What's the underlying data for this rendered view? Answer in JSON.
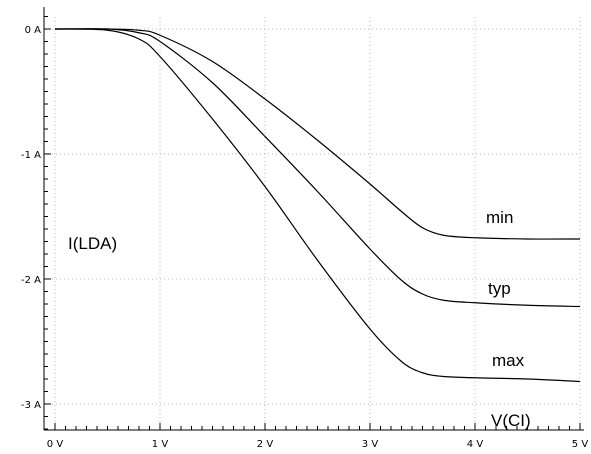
{
  "chart_data": {
    "type": "line",
    "xlabel": "V(CI)",
    "ylabel": "I(LDA)",
    "xlim": [
      0,
      5
    ],
    "ylim": [
      -3.2,
      0.1
    ],
    "x_ticks": [
      0,
      1,
      2,
      3,
      4,
      5
    ],
    "x_tick_labels": [
      "0 V",
      "1 V",
      "2 V",
      "3 V",
      "4 V",
      "5 V"
    ],
    "y_ticks": [
      0,
      -1,
      -2,
      -3
    ],
    "y_tick_labels": [
      "0 A",
      "-1 A",
      "-2 A",
      "-3 A"
    ],
    "grid": true,
    "series": [
      {
        "name": "min",
        "x": [
          0,
          0.5,
          0.8,
          1.0,
          1.5,
          2.0,
          2.5,
          3.0,
          3.3,
          3.5,
          3.7,
          4.0,
          4.5,
          5.0
        ],
        "y": [
          0,
          0,
          -0.01,
          -0.05,
          -0.26,
          -0.56,
          -0.89,
          -1.24,
          -1.46,
          -1.59,
          -1.65,
          -1.67,
          -1.68,
          -1.68
        ]
      },
      {
        "name": "typ",
        "x": [
          0,
          0.5,
          0.8,
          1.0,
          1.5,
          2.0,
          2.5,
          3.0,
          3.3,
          3.5,
          3.7,
          4.0,
          4.5,
          5.0
        ],
        "y": [
          0,
          0,
          -0.03,
          -0.1,
          -0.43,
          -0.86,
          -1.3,
          -1.76,
          -2.01,
          -2.12,
          -2.17,
          -2.19,
          -2.21,
          -2.22
        ]
      },
      {
        "name": "max",
        "x": [
          0,
          0.5,
          0.8,
          1.0,
          1.5,
          2.0,
          2.5,
          3.0,
          3.3,
          3.5,
          3.7,
          4.0,
          4.5,
          5.0
        ],
        "y": [
          0,
          -0.01,
          -0.08,
          -0.22,
          -0.72,
          -1.26,
          -1.85,
          -2.4,
          -2.66,
          -2.75,
          -2.78,
          -2.79,
          -2.8,
          -2.82
        ]
      }
    ]
  }
}
